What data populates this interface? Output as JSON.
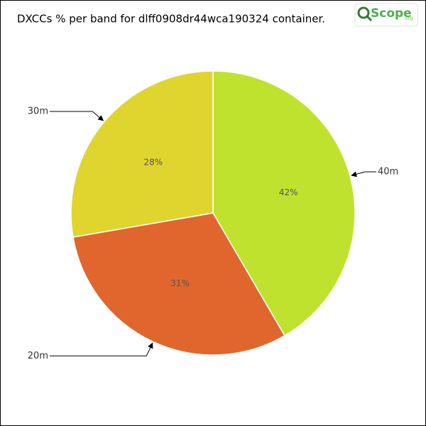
{
  "chart_data": {
    "type": "pie",
    "title": "DXCCs % per band for dlff0908dr44wca190324 container.",
    "categories": [
      "40m",
      "20m",
      "30m"
    ],
    "values": [
      42,
      31,
      28
    ],
    "value_labels": [
      "42%",
      "31%",
      "28%"
    ],
    "colors": [
      "#bfe22e",
      "#e0662e",
      "#e0d52e"
    ]
  },
  "logo": {
    "name": "Scope",
    "domain": ".org"
  }
}
